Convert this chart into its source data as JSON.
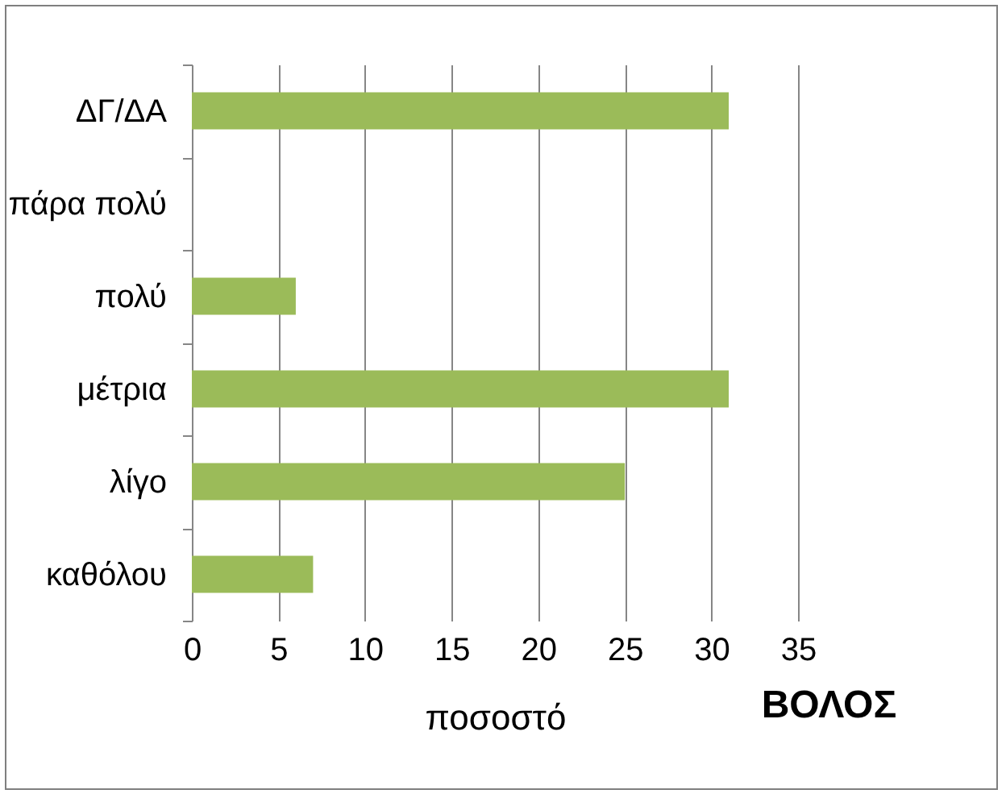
{
  "chart_data": {
    "type": "bar",
    "orientation": "horizontal",
    "title": "ΒΟΛΟΣ",
    "xlabel": "ποσοστό",
    "categories": [
      "ΔΓ/ΔΑ",
      "πάρα πολύ",
      "πολύ",
      "μέτρια",
      "λίγο",
      "καθόλου"
    ],
    "values": [
      31,
      0,
      6,
      31,
      25,
      7
    ],
    "color": "#9bbb59",
    "xlim": [
      0,
      35
    ],
    "xticks": [
      0,
      5,
      10,
      15,
      20,
      25,
      30,
      35
    ],
    "grid": "x"
  }
}
